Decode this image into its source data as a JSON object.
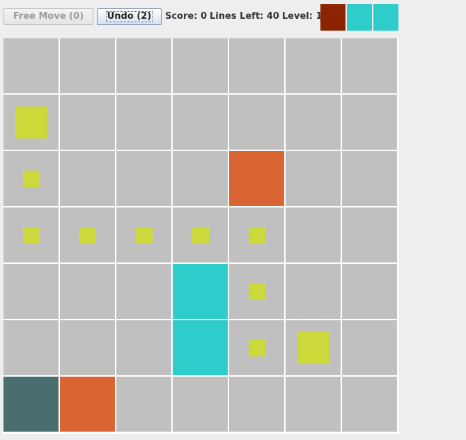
{
  "toolbar": {
    "free_move_label": "Free Move (0)",
    "undo_label": "Undo (2)"
  },
  "status": {
    "score_label": "Score: 0",
    "lines_left_label": "Lines Left: 40",
    "level_label": "Level: 1"
  },
  "colors": {
    "board_bg": "#ffffff",
    "cell_bg": "#c0c0c0",
    "yellow": "#cdd83b",
    "orange": "#d96533",
    "cyan": "#2fcccc",
    "slate": "#4a6e6e",
    "maroon": "#8b2500"
  },
  "next_pieces": [
    "maroon",
    "cyan",
    "cyan"
  ],
  "board": {
    "rows": 7,
    "cols": 7,
    "pieces": [
      {
        "row": 1,
        "col": 0,
        "color": "yellow",
        "size": "medium"
      },
      {
        "row": 2,
        "col": 0,
        "color": "yellow",
        "size": "small"
      },
      {
        "row": 2,
        "col": 4,
        "color": "orange",
        "size": "big"
      },
      {
        "row": 3,
        "col": 0,
        "color": "yellow",
        "size": "small"
      },
      {
        "row": 3,
        "col": 1,
        "color": "yellow",
        "size": "small"
      },
      {
        "row": 3,
        "col": 2,
        "color": "yellow",
        "size": "small"
      },
      {
        "row": 3,
        "col": 3,
        "color": "yellow",
        "size": "small"
      },
      {
        "row": 3,
        "col": 4,
        "color": "yellow",
        "size": "small"
      },
      {
        "row": 4,
        "col": 3,
        "color": "cyan",
        "size": "big"
      },
      {
        "row": 4,
        "col": 4,
        "color": "yellow",
        "size": "small"
      },
      {
        "row": 5,
        "col": 3,
        "color": "cyan",
        "size": "big"
      },
      {
        "row": 5,
        "col": 4,
        "color": "yellow",
        "size": "small"
      },
      {
        "row": 5,
        "col": 5,
        "color": "yellow",
        "size": "medium"
      },
      {
        "row": 6,
        "col": 0,
        "color": "slate",
        "size": "big"
      },
      {
        "row": 6,
        "col": 1,
        "color": "orange",
        "size": "big"
      }
    ]
  }
}
